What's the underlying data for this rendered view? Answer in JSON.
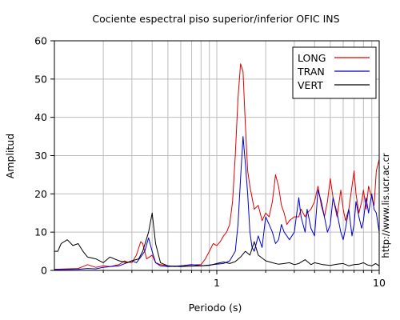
{
  "chart_data": {
    "type": "line",
    "title": "Cociente espectral piso superior/inferior  OFIC INS",
    "xlabel": "Periodo (s)",
    "ylabel": "Amplitud",
    "xscale": "log",
    "xlim": [
      0.1,
      10
    ],
    "ylim": [
      0,
      60
    ],
    "x_tick_labels": [
      "1",
      "10"
    ],
    "x_tick_values": [
      1,
      10
    ],
    "y_ticks": [
      0,
      10,
      20,
      30,
      40,
      50,
      60
    ],
    "grid": true,
    "legend_position": "top-right",
    "side_text": "http://www.lis.ucr.ac.cr",
    "series": [
      {
        "name": "LONG",
        "color": "#e00000",
        "x": [
          0.1,
          0.14,
          0.15,
          0.16,
          0.18,
          0.2,
          0.22,
          0.25,
          0.27,
          0.28,
          0.3,
          0.32,
          0.34,
          0.35,
          0.37,
          0.4,
          0.42,
          0.45,
          0.5,
          0.55,
          0.6,
          0.7,
          0.8,
          0.85,
          0.9,
          0.95,
          1.0,
          1.05,
          1.1,
          1.15,
          1.2,
          1.25,
          1.3,
          1.35,
          1.4,
          1.45,
          1.5,
          1.55,
          1.6,
          1.65,
          1.7,
          1.8,
          1.9,
          2.0,
          2.1,
          2.2,
          2.3,
          2.4,
          2.5,
          2.6,
          2.7,
          2.8,
          3.0,
          3.2,
          3.3,
          3.5,
          3.6,
          3.8,
          4.0,
          4.2,
          4.4,
          4.6,
          4.8,
          5.0,
          5.2,
          5.5,
          5.8,
          6.0,
          6.2,
          6.5,
          6.8,
          7.0,
          7.2,
          7.5,
          7.8,
          8.0,
          8.3,
          8.6,
          9.0,
          9.3,
          9.6,
          10.0
        ],
        "y": [
          0.3,
          0.5,
          1.0,
          1.5,
          0.8,
          1.2,
          1.0,
          1.5,
          2.5,
          2.2,
          2.0,
          4.0,
          7.5,
          7.0,
          3.0,
          4.0,
          2.0,
          1.5,
          1.2,
          1.0,
          1.2,
          1.4,
          1.5,
          3.0,
          5.0,
          7.0,
          6.5,
          7.5,
          9.0,
          10.0,
          12.0,
          18.0,
          30.0,
          45.0,
          54.0,
          52.0,
          38.0,
          26.0,
          22.0,
          19.0,
          16.0,
          17.0,
          13.0,
          15.0,
          14.0,
          18.0,
          25.0,
          22.0,
          17.0,
          15.0,
          12.0,
          13.0,
          14.0,
          14.0,
          16.0,
          14.0,
          15.0,
          16.0,
          18.0,
          22.0,
          17.0,
          14.0,
          18.0,
          24.0,
          19.0,
          14.0,
          21.0,
          16.0,
          13.0,
          16.0,
          22.0,
          26.0,
          20.0,
          15.0,
          18.0,
          21.0,
          16.0,
          22.0,
          19.0,
          17.0,
          26.0,
          29.0
        ]
      },
      {
        "name": "TRAN",
        "color": "#0000d0",
        "x": [
          0.1,
          0.14,
          0.16,
          0.18,
          0.2,
          0.22,
          0.25,
          0.28,
          0.3,
          0.32,
          0.34,
          0.36,
          0.38,
          0.4,
          0.42,
          0.45,
          0.5,
          0.6,
          0.7,
          0.8,
          0.9,
          1.0,
          1.1,
          1.2,
          1.3,
          1.35,
          1.4,
          1.45,
          1.5,
          1.55,
          1.6,
          1.65,
          1.7,
          1.8,
          1.9,
          2.0,
          2.1,
          2.2,
          2.3,
          2.4,
          2.5,
          2.6,
          2.7,
          2.8,
          3.0,
          3.2,
          3.3,
          3.5,
          3.6,
          3.8,
          4.0,
          4.2,
          4.4,
          4.6,
          4.8,
          5.0,
          5.2,
          5.5,
          5.8,
          6.0,
          6.2,
          6.5,
          6.8,
          7.0,
          7.2,
          7.5,
          7.8,
          8.0,
          8.3,
          8.6,
          9.0,
          9.3,
          9.6,
          10.0
        ],
        "y": [
          0.2,
          0.3,
          0.5,
          0.4,
          0.8,
          1.0,
          1.2,
          2.0,
          2.5,
          2.0,
          3.5,
          5.0,
          8.5,
          5.0,
          2.0,
          1.2,
          1.0,
          1.2,
          1.5,
          1.2,
          1.4,
          1.6,
          1.8,
          2.5,
          5.0,
          12.0,
          24.0,
          35.0,
          28.0,
          20.0,
          10.0,
          6.0,
          5.0,
          9.0,
          6.0,
          14.0,
          12.0,
          10.0,
          7.0,
          8.0,
          12.0,
          10.0,
          9.0,
          8.0,
          10.0,
          19.0,
          14.0,
          10.0,
          16.0,
          11.0,
          9.0,
          21.0,
          18.0,
          14.0,
          10.0,
          12.0,
          19.0,
          15.0,
          10.0,
          8.0,
          11.0,
          16.0,
          9.0,
          12.0,
          18.0,
          14.0,
          11.0,
          13.0,
          19.0,
          15.0,
          20.0,
          16.0,
          15.0,
          10.0
        ]
      },
      {
        "name": "VERT",
        "color": "#000000",
        "x": [
          0.1,
          0.105,
          0.11,
          0.12,
          0.13,
          0.14,
          0.15,
          0.16,
          0.18,
          0.2,
          0.22,
          0.25,
          0.28,
          0.3,
          0.33,
          0.35,
          0.38,
          0.4,
          0.42,
          0.45,
          0.5,
          0.6,
          0.7,
          0.8,
          0.9,
          1.0,
          1.1,
          1.2,
          1.3,
          1.4,
          1.5,
          1.6,
          1.7,
          1.8,
          2.0,
          2.2,
          2.4,
          2.6,
          2.8,
          3.0,
          3.2,
          3.5,
          3.8,
          4.0,
          4.5,
          5.0,
          5.5,
          6.0,
          6.5,
          7.0,
          7.5,
          8.0,
          8.5,
          9.0,
          9.5,
          10.0
        ],
        "y": [
          5.0,
          5.0,
          7.0,
          8.0,
          6.5,
          7.0,
          5.0,
          3.5,
          3.0,
          2.0,
          3.5,
          2.5,
          2.0,
          2.5,
          3.0,
          5.0,
          10.0,
          15.0,
          7.0,
          2.0,
          1.2,
          1.0,
          1.1,
          1.2,
          1.3,
          1.8,
          2.2,
          1.8,
          2.3,
          3.5,
          5.0,
          4.0,
          7.5,
          4.0,
          2.5,
          2.0,
          1.6,
          1.8,
          2.0,
          1.5,
          1.8,
          2.8,
          1.5,
          2.0,
          1.5,
          1.3,
          1.6,
          1.8,
          1.2,
          1.5,
          1.6,
          2.0,
          1.4,
          1.2,
          1.8,
          1.2
        ]
      }
    ]
  }
}
